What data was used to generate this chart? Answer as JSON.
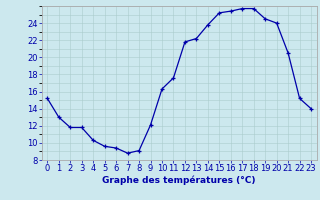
{
  "x": [
    0,
    1,
    2,
    3,
    4,
    5,
    6,
    7,
    8,
    9,
    10,
    11,
    12,
    13,
    14,
    15,
    16,
    17,
    18,
    19,
    20,
    21,
    22,
    23
  ],
  "y": [
    15.2,
    13.0,
    11.8,
    11.8,
    10.3,
    9.6,
    9.4,
    8.8,
    9.1,
    12.1,
    16.3,
    17.6,
    21.8,
    22.2,
    23.8,
    25.2,
    25.4,
    25.7,
    25.7,
    24.5,
    24.0,
    20.5,
    15.2,
    14.0
  ],
  "xlabel": "Graphe des températures (°C)",
  "xlim": [
    -0.5,
    23.5
  ],
  "ylim": [
    8,
    26
  ],
  "yticks": [
    8,
    10,
    12,
    14,
    16,
    18,
    20,
    22,
    24
  ],
  "xticks": [
    0,
    1,
    2,
    3,
    4,
    5,
    6,
    7,
    8,
    9,
    10,
    11,
    12,
    13,
    14,
    15,
    16,
    17,
    18,
    19,
    20,
    21,
    22,
    23
  ],
  "line_color": "#0000aa",
  "marker": "+",
  "bg_color": "#cce8ee",
  "grid_color": "#aacccc",
  "label_color": "#0000aa",
  "xlabel_fontsize": 6.5,
  "tick_fontsize": 6.0,
  "spine_color": "#aaaaaa"
}
